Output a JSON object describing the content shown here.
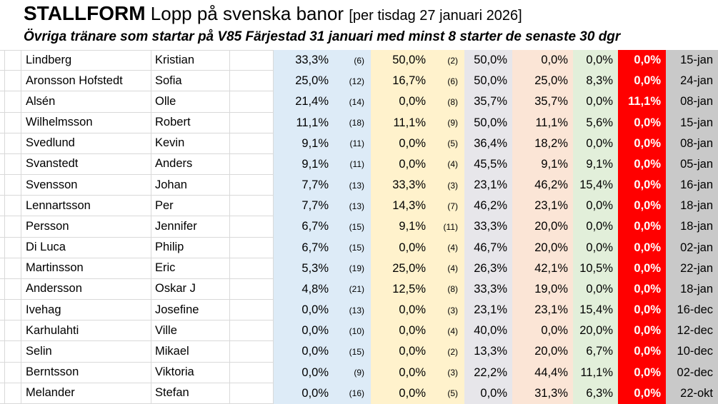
{
  "header": {
    "title_main": "STALLFORM",
    "title_rest": " Lopp på svenska banor ",
    "title_bracket": "[per tisdag 27 januari 2026]",
    "subtitle": "Övriga tränare som startar på V85 Färjestad 31 januari med minst 8 starter de senaste 30 dgr"
  },
  "colors": {
    "col_blue": "#DDEBF7",
    "col_yellow": "#FFF2CC",
    "col_gray": "#E7E6EA",
    "col_peach": "#FBE5D6",
    "col_green": "#E2EFDA",
    "col_red": "#FF0000",
    "col_date_gray": "#C9C9C9",
    "gridline": "#D9D9D9",
    "red_text": "#FFFFFF"
  },
  "table": {
    "rows": [
      {
        "last": "Lindberg",
        "first": "Kristian",
        "p1": "33,3%",
        "n1": "(6)",
        "p2": "50,0%",
        "n2": "(2)",
        "p3": "50,0%",
        "p4": "0,0%",
        "p5": "0,0%",
        "p6": "0,0%",
        "date": "15-jan"
      },
      {
        "last": "Aronsson Hofstedt",
        "first": "Sofia",
        "p1": "25,0%",
        "n1": "(12)",
        "p2": "16,7%",
        "n2": "(6)",
        "p3": "50,0%",
        "p4": "25,0%",
        "p5": "8,3%",
        "p6": "0,0%",
        "date": "24-jan"
      },
      {
        "last": "Alsén",
        "first": "Olle",
        "p1": "21,4%",
        "n1": "(14)",
        "p2": "0,0%",
        "n2": "(8)",
        "p3": "35,7%",
        "p4": "35,7%",
        "p5": "0,0%",
        "p6": "11,1%",
        "date": "08-jan"
      },
      {
        "last": "Wilhelmsson",
        "first": "Robert",
        "p1": "11,1%",
        "n1": "(18)",
        "p2": "11,1%",
        "n2": "(9)",
        "p3": "50,0%",
        "p4": "11,1%",
        "p5": "5,6%",
        "p6": "0,0%",
        "date": "15-jan"
      },
      {
        "last": "Svedlund",
        "first": "Kevin",
        "p1": "9,1%",
        "n1": "(11)",
        "p2": "0,0%",
        "n2": "(5)",
        "p3": "36,4%",
        "p4": "18,2%",
        "p5": "0,0%",
        "p6": "0,0%",
        "date": "08-jan"
      },
      {
        "last": "Svanstedt",
        "first": "Anders",
        "p1": "9,1%",
        "n1": "(11)",
        "p2": "0,0%",
        "n2": "(4)",
        "p3": "45,5%",
        "p4": "9,1%",
        "p5": "9,1%",
        "p6": "0,0%",
        "date": "05-jan"
      },
      {
        "last": "Svensson",
        "first": "Johan",
        "p1": "7,7%",
        "n1": "(13)",
        "p2": "33,3%",
        "n2": "(3)",
        "p3": "23,1%",
        "p4": "46,2%",
        "p5": "15,4%",
        "p6": "0,0%",
        "date": "16-jan"
      },
      {
        "last": "Lennartsson",
        "first": "Per",
        "p1": "7,7%",
        "n1": "(13)",
        "p2": "14,3%",
        "n2": "(7)",
        "p3": "46,2%",
        "p4": "23,1%",
        "p5": "0,0%",
        "p6": "0,0%",
        "date": "18-jan"
      },
      {
        "last": "Persson",
        "first": "Jennifer",
        "p1": "6,7%",
        "n1": "(15)",
        "p2": "9,1%",
        "n2": "(11)",
        "p3": "33,3%",
        "p4": "20,0%",
        "p5": "0,0%",
        "p6": "0,0%",
        "date": "18-jan"
      },
      {
        "last": "Di Luca",
        "first": "Philip",
        "p1": "6,7%",
        "n1": "(15)",
        "p2": "0,0%",
        "n2": "(4)",
        "p3": "46,7%",
        "p4": "20,0%",
        "p5": "0,0%",
        "p6": "0,0%",
        "date": "02-jan"
      },
      {
        "last": "Martinsson",
        "first": "Eric",
        "p1": "5,3%",
        "n1": "(19)",
        "p2": "25,0%",
        "n2": "(4)",
        "p3": "26,3%",
        "p4": "42,1%",
        "p5": "10,5%",
        "p6": "0,0%",
        "date": "22-jan"
      },
      {
        "last": "Andersson",
        "first": "Oskar J",
        "p1": "4,8%",
        "n1": "(21)",
        "p2": "12,5%",
        "n2": "(8)",
        "p3": "33,3%",
        "p4": "19,0%",
        "p5": "0,0%",
        "p6": "0,0%",
        "date": "18-jan"
      },
      {
        "last": "Ivehag",
        "first": "Josefine",
        "p1": "0,0%",
        "n1": "(13)",
        "p2": "0,0%",
        "n2": "(3)",
        "p3": "23,1%",
        "p4": "23,1%",
        "p5": "15,4%",
        "p6": "0,0%",
        "date": "16-dec"
      },
      {
        "last": "Karhulahti",
        "first": "Ville",
        "p1": "0,0%",
        "n1": "(10)",
        "p2": "0,0%",
        "n2": "(4)",
        "p3": "40,0%",
        "p4": "0,0%",
        "p5": "20,0%",
        "p6": "0,0%",
        "date": "12-dec"
      },
      {
        "last": "Selin",
        "first": "Mikael",
        "p1": "0,0%",
        "n1": "(15)",
        "p2": "0,0%",
        "n2": "(2)",
        "p3": "13,3%",
        "p4": "20,0%",
        "p5": "6,7%",
        "p6": "0,0%",
        "date": "10-dec"
      },
      {
        "last": "Berntsson",
        "first": "Viktoria",
        "p1": "0,0%",
        "n1": "(9)",
        "p2": "0,0%",
        "n2": "(3)",
        "p3": "22,2%",
        "p4": "44,4%",
        "p5": "11,1%",
        "p6": "0,0%",
        "date": "02-dec"
      },
      {
        "last": "Melander",
        "first": "Stefan",
        "p1": "0,0%",
        "n1": "(16)",
        "p2": "0,0%",
        "n2": "(5)",
        "p3": "0,0%",
        "p4": "31,3%",
        "p5": "6,3%",
        "p6": "0,0%",
        "date": "22-okt"
      }
    ]
  }
}
